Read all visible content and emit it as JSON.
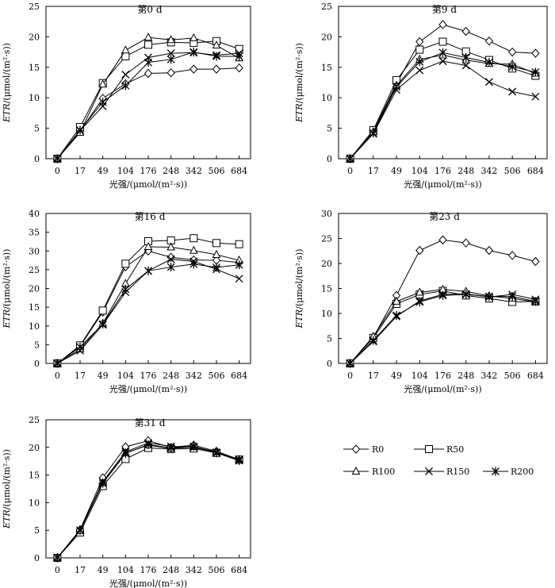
{
  "chart_data": [
    {
      "type": "line",
      "title": "第0 d",
      "xlabel": "光强/(μmol/(m²·s))",
      "ylabel": "ETR/(μmol/(m²·s))",
      "ylim": [
        0,
        25
      ],
      "yticks": [
        0,
        5,
        10,
        15,
        20,
        25
      ],
      "categories": [
        "0",
        "17",
        "49",
        "104",
        "176",
        "248",
        "342",
        "506",
        "684"
      ],
      "series": [
        {
          "name": "R0",
          "marker": "diamond",
          "values": [
            0,
            4.5,
            9.9,
            12.3,
            14.0,
            14.1,
            14.7,
            14.7,
            14.9
          ]
        },
        {
          "name": "R50",
          "marker": "square",
          "values": [
            0,
            5.2,
            12.4,
            16.8,
            18.7,
            19.1,
            19.0,
            19.3,
            18.0
          ]
        },
        {
          "name": "R100",
          "marker": "triangle",
          "values": [
            0,
            4.3,
            12.2,
            17.8,
            19.9,
            19.5,
            19.8,
            18.6,
            16.5
          ]
        },
        {
          "name": "R150",
          "marker": "x",
          "values": [
            0,
            4.6,
            8.6,
            13.8,
            16.6,
            17.3,
            17.4,
            17.0,
            17.3
          ]
        },
        {
          "name": "R200",
          "marker": "star",
          "values": [
            0,
            4.7,
            9.3,
            12.0,
            15.8,
            16.3,
            17.5,
            16.8,
            16.8
          ]
        }
      ]
    },
    {
      "type": "line",
      "title": "第9 d",
      "xlabel": "光强/(μmol/(m²·s))",
      "ylabel": "ETR/(μmol/(m²·s))",
      "ylim": [
        0,
        25
      ],
      "yticks": [
        0,
        5,
        10,
        15,
        20,
        25
      ],
      "categories": [
        "0",
        "17",
        "49",
        "104",
        "176",
        "248",
        "342",
        "506",
        "684"
      ],
      "series": [
        {
          "name": "R0",
          "marker": "diamond",
          "values": [
            0,
            4.5,
            12.3,
            19.2,
            22.0,
            20.9,
            19.3,
            17.5,
            17.3
          ]
        },
        {
          "name": "R50",
          "marker": "square",
          "values": [
            0,
            4.7,
            12.9,
            17.9,
            19.2,
            17.6,
            16.2,
            14.8,
            13.6
          ]
        },
        {
          "name": "R100",
          "marker": "triangle",
          "values": [
            0,
            4.4,
            12.0,
            16.3,
            17.0,
            16.2,
            15.6,
            15.5,
            14.0
          ]
        },
        {
          "name": "R150",
          "marker": "x",
          "values": [
            0,
            4.1,
            11.3,
            14.5,
            16.0,
            15.3,
            12.6,
            11.0,
            10.2
          ]
        },
        {
          "name": "R200",
          "marker": "star",
          "values": [
            0,
            4.2,
            11.8,
            15.9,
            17.4,
            16.6,
            15.8,
            15.1,
            14.2
          ]
        }
      ]
    },
    {
      "type": "line",
      "title": "第16 d",
      "xlabel": "光强/(μmol/(m²·s))",
      "ylabel": "ETR/(μmol/(m²·s))",
      "ylim": [
        0,
        40
      ],
      "yticks": [
        0,
        5,
        10,
        15,
        20,
        25,
        30,
        35,
        40
      ],
      "categories": [
        "0",
        "17",
        "49",
        "104",
        "176",
        "248",
        "342",
        "506",
        "684"
      ],
      "series": [
        {
          "name": "R0",
          "marker": "diamond",
          "values": [
            0,
            4.6,
            13.7,
            25.8,
            30.0,
            28.3,
            27.6,
            27.5,
            26.9
          ]
        },
        {
          "name": "R50",
          "marker": "square",
          "values": [
            0,
            4.8,
            14.1,
            26.6,
            32.6,
            32.8,
            33.4,
            32.1,
            31.8
          ]
        },
        {
          "name": "R100",
          "marker": "triangle",
          "values": [
            0,
            3.8,
            10.7,
            21.3,
            31.1,
            31.0,
            30.1,
            29.0,
            27.5
          ]
        },
        {
          "name": "R150",
          "marker": "x",
          "values": [
            0,
            3.4,
            10.3,
            19.0,
            24.7,
            27.8,
            27.2,
            25.1,
            22.6
          ]
        },
        {
          "name": "R200",
          "marker": "star",
          "values": [
            0,
            4.4,
            10.5,
            19.8,
            24.7,
            25.7,
            26.5,
            25.6,
            26.3
          ]
        }
      ]
    },
    {
      "type": "line",
      "title": "第23 d",
      "xlabel": "光强/(μmol/(m²·s))",
      "ylabel": "ETR/(μmol/(m²·s))",
      "ylim": [
        0,
        30
      ],
      "yticks": [
        0,
        5,
        10,
        15,
        20,
        25,
        30
      ],
      "categories": [
        "0",
        "17",
        "49",
        "104",
        "176",
        "248",
        "342",
        "506",
        "684"
      ],
      "series": [
        {
          "name": "R0",
          "marker": "diamond",
          "values": [
            0,
            5.2,
            13.6,
            22.6,
            24.7,
            24.1,
            22.6,
            21.6,
            20.4
          ]
        },
        {
          "name": "R50",
          "marker": "square",
          "values": [
            0,
            5.1,
            11.9,
            13.8,
            14.5,
            13.6,
            13.0,
            12.3,
            12.4
          ]
        },
        {
          "name": "R100",
          "marker": "triangle",
          "values": [
            0,
            5.4,
            12.4,
            14.2,
            14.8,
            14.4,
            13.5,
            13.0,
            12.3
          ]
        },
        {
          "name": "R150",
          "marker": "x",
          "values": [
            0,
            4.4,
            9.4,
            12.5,
            13.8,
            13.9,
            13.3,
            13.8,
            12.8
          ]
        },
        {
          "name": "R200",
          "marker": "star",
          "values": [
            0,
            4.6,
            9.6,
            12.3,
            13.6,
            13.8,
            13.4,
            13.4,
            12.4
          ]
        }
      ]
    },
    {
      "type": "line",
      "title": "第31 d",
      "xlabel": "光强/(μmol/(m²·s))",
      "ylabel": "ETR/(μmol/(m²·s))",
      "ylim": [
        0,
        25
      ],
      "yticks": [
        0,
        5,
        10,
        15,
        20,
        25
      ],
      "categories": [
        "0",
        "17",
        "49",
        "104",
        "176",
        "248",
        "342",
        "506",
        "684"
      ],
      "series": [
        {
          "name": "R0",
          "marker": "diamond",
          "values": [
            0,
            5.1,
            14.5,
            20.1,
            21.2,
            20.0,
            20.4,
            19.3,
            17.8
          ]
        },
        {
          "name": "R50",
          "marker": "square",
          "values": [
            0,
            4.6,
            13.0,
            17.9,
            19.9,
            19.7,
            19.8,
            19.0,
            17.8
          ]
        },
        {
          "name": "R100",
          "marker": "triangle",
          "values": [
            0,
            4.9,
            13.6,
            19.0,
            20.4,
            19.8,
            20.1,
            19.2,
            17.7
          ]
        },
        {
          "name": "R150",
          "marker": "x",
          "values": [
            0,
            5.0,
            13.8,
            19.2,
            20.8,
            20.2,
            20.0,
            19.1,
            17.8
          ]
        },
        {
          "name": "R200",
          "marker": "star",
          "values": [
            0,
            5.0,
            13.5,
            18.9,
            20.5,
            19.9,
            20.2,
            19.0,
            17.6
          ]
        }
      ]
    }
  ],
  "legend": [
    {
      "name": "R0",
      "marker": "diamond"
    },
    {
      "name": "R50",
      "marker": "square"
    },
    {
      "name": "R100",
      "marker": "triangle"
    },
    {
      "name": "R150",
      "marker": "x"
    },
    {
      "name": "R200",
      "marker": "star"
    }
  ]
}
